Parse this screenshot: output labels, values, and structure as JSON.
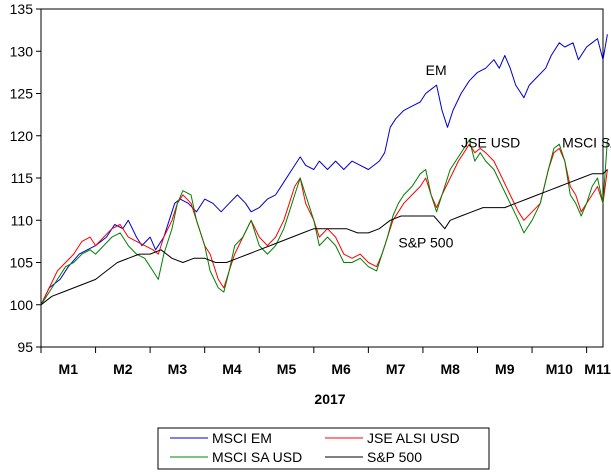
{
  "chart_data": {
    "type": "line",
    "title": "",
    "xlabel": "2017",
    "ylabel": "",
    "ylim": [
      95,
      135
    ],
    "yticks": [
      95,
      100,
      105,
      110,
      115,
      120,
      125,
      130,
      135
    ],
    "xlim": [
      0,
      10.3
    ],
    "xticks": [
      {
        "label": "M1",
        "x": 0.5
      },
      {
        "label": "M2",
        "x": 1.5
      },
      {
        "label": "M3",
        "x": 2.5
      },
      {
        "label": "M4",
        "x": 3.5
      },
      {
        "label": "M5",
        "x": 4.5
      },
      {
        "label": "M6",
        "x": 5.5
      },
      {
        "label": "M7",
        "x": 6.5
      },
      {
        "label": "M8",
        "x": 7.5
      },
      {
        "label": "M9",
        "x": 8.5
      },
      {
        "label": "M10",
        "x": 9.5
      },
      {
        "label": "M11",
        "x": 10.2
      }
    ],
    "grid": false,
    "legend": "bottom",
    "series": [
      {
        "name": "MSCI EM",
        "color": "#0000cc",
        "points": [
          [
            0,
            100
          ],
          [
            0.15,
            102
          ],
          [
            0.35,
            103
          ],
          [
            0.5,
            104.5
          ],
          [
            0.7,
            106
          ],
          [
            0.85,
            106.5
          ],
          [
            1.0,
            107
          ],
          [
            1.2,
            108
          ],
          [
            1.35,
            109.5
          ],
          [
            1.5,
            109
          ],
          [
            1.6,
            110
          ],
          [
            1.75,
            108
          ],
          [
            1.85,
            107
          ],
          [
            2.0,
            108
          ],
          [
            2.1,
            106.5
          ],
          [
            2.25,
            108
          ],
          [
            2.35,
            110
          ],
          [
            2.45,
            112
          ],
          [
            2.55,
            112.5
          ],
          [
            2.7,
            112
          ],
          [
            2.85,
            111
          ],
          [
            3.0,
            112.5
          ],
          [
            3.15,
            112
          ],
          [
            3.3,
            111
          ],
          [
            3.45,
            112
          ],
          [
            3.6,
            113
          ],
          [
            3.75,
            112
          ],
          [
            3.85,
            111
          ],
          [
            4.0,
            111.5
          ],
          [
            4.15,
            112.5
          ],
          [
            4.3,
            113
          ],
          [
            4.45,
            114.5
          ],
          [
            4.6,
            116
          ],
          [
            4.75,
            117.5
          ],
          [
            4.85,
            116.5
          ],
          [
            5.0,
            116
          ],
          [
            5.1,
            117
          ],
          [
            5.25,
            116
          ],
          [
            5.4,
            117
          ],
          [
            5.55,
            116
          ],
          [
            5.7,
            117
          ],
          [
            5.85,
            116.5
          ],
          [
            6.0,
            116
          ],
          [
            6.2,
            117
          ],
          [
            6.3,
            118
          ],
          [
            6.4,
            121
          ],
          [
            6.5,
            122
          ],
          [
            6.65,
            123
          ],
          [
            6.8,
            123.5
          ],
          [
            6.95,
            124
          ],
          [
            7.05,
            125
          ],
          [
            7.15,
            125.5
          ],
          [
            7.25,
            126
          ],
          [
            7.35,
            123
          ],
          [
            7.45,
            121
          ],
          [
            7.55,
            123
          ],
          [
            7.7,
            125
          ],
          [
            7.85,
            126.5
          ],
          [
            8.0,
            127.5
          ],
          [
            8.15,
            128
          ],
          [
            8.3,
            129
          ],
          [
            8.4,
            128
          ],
          [
            8.5,
            129.5
          ],
          [
            8.6,
            128
          ],
          [
            8.7,
            126
          ],
          [
            8.85,
            124.5
          ],
          [
            8.95,
            126
          ],
          [
            9.1,
            127
          ],
          [
            9.25,
            128
          ],
          [
            9.35,
            129.5
          ],
          [
            9.5,
            131
          ],
          [
            9.6,
            130.5
          ],
          [
            9.75,
            131
          ],
          [
            9.85,
            129
          ],
          [
            10.0,
            130.5
          ],
          [
            10.1,
            131
          ],
          [
            10.2,
            131.5
          ],
          [
            10.3,
            129
          ],
          [
            10.38,
            132
          ]
        ]
      },
      {
        "name": "JSE ALSI USD",
        "color": "#ff0000",
        "points": [
          [
            0,
            100
          ],
          [
            0.15,
            102
          ],
          [
            0.3,
            104
          ],
          [
            0.45,
            105
          ],
          [
            0.6,
            106
          ],
          [
            0.75,
            107.5
          ],
          [
            0.9,
            108
          ],
          [
            1.0,
            107
          ],
          [
            1.15,
            108
          ],
          [
            1.3,
            109
          ],
          [
            1.45,
            109.5
          ],
          [
            1.6,
            108
          ],
          [
            1.75,
            107.5
          ],
          [
            1.9,
            107
          ],
          [
            2.05,
            106.5
          ],
          [
            2.15,
            106
          ],
          [
            2.25,
            108
          ],
          [
            2.4,
            110
          ],
          [
            2.5,
            112
          ],
          [
            2.6,
            113
          ],
          [
            2.75,
            112
          ],
          [
            2.85,
            110
          ],
          [
            3.0,
            107
          ],
          [
            3.1,
            106
          ],
          [
            3.25,
            103
          ],
          [
            3.35,
            102
          ],
          [
            3.45,
            104
          ],
          [
            3.55,
            106
          ],
          [
            3.7,
            108
          ],
          [
            3.85,
            110
          ],
          [
            4.0,
            108
          ],
          [
            4.15,
            107
          ],
          [
            4.3,
            108
          ],
          [
            4.45,
            110
          ],
          [
            4.55,
            112
          ],
          [
            4.65,
            114
          ],
          [
            4.75,
            115
          ],
          [
            4.85,
            112
          ],
          [
            5.0,
            110
          ],
          [
            5.1,
            108
          ],
          [
            5.25,
            109
          ],
          [
            5.4,
            108
          ],
          [
            5.55,
            106
          ],
          [
            5.7,
            105.5
          ],
          [
            5.85,
            106
          ],
          [
            6.0,
            105
          ],
          [
            6.15,
            104.5
          ],
          [
            6.25,
            106
          ],
          [
            6.35,
            108
          ],
          [
            6.45,
            110
          ],
          [
            6.55,
            111
          ],
          [
            6.65,
            112
          ],
          [
            6.8,
            113
          ],
          [
            6.95,
            114
          ],
          [
            7.05,
            115
          ],
          [
            7.15,
            113
          ],
          [
            7.25,
            111.5
          ],
          [
            7.35,
            113
          ],
          [
            7.5,
            115
          ],
          [
            7.65,
            117
          ],
          [
            7.75,
            118
          ],
          [
            7.85,
            119
          ],
          [
            7.95,
            118
          ],
          [
            8.05,
            118.5
          ],
          [
            8.15,
            118
          ],
          [
            8.3,
            117
          ],
          [
            8.45,
            115
          ],
          [
            8.6,
            113
          ],
          [
            8.75,
            111
          ],
          [
            8.85,
            110
          ],
          [
            9.0,
            111
          ],
          [
            9.15,
            112
          ],
          [
            9.3,
            116
          ],
          [
            9.4,
            118
          ],
          [
            9.5,
            118.5
          ],
          [
            9.6,
            117
          ],
          [
            9.7,
            114
          ],
          [
            9.8,
            113
          ],
          [
            9.9,
            111
          ],
          [
            10.0,
            112
          ],
          [
            10.1,
            113
          ],
          [
            10.2,
            114
          ],
          [
            10.3,
            112
          ],
          [
            10.38,
            116
          ]
        ]
      },
      {
        "name": "MSCI SA USD",
        "color": "#008000",
        "points": [
          [
            0,
            100
          ],
          [
            0.15,
            101.5
          ],
          [
            0.3,
            103
          ],
          [
            0.45,
            104.5
          ],
          [
            0.6,
            105
          ],
          [
            0.75,
            106
          ],
          [
            0.9,
            106.5
          ],
          [
            1.0,
            106
          ],
          [
            1.15,
            107
          ],
          [
            1.3,
            108
          ],
          [
            1.45,
            108.5
          ],
          [
            1.6,
            107
          ],
          [
            1.75,
            106
          ],
          [
            1.9,
            105.5
          ],
          [
            2.05,
            104
          ],
          [
            2.15,
            103
          ],
          [
            2.25,
            106
          ],
          [
            2.4,
            109
          ],
          [
            2.5,
            112
          ],
          [
            2.6,
            113.5
          ],
          [
            2.75,
            113
          ],
          [
            2.85,
            110
          ],
          [
            3.0,
            107
          ],
          [
            3.1,
            104
          ],
          [
            3.25,
            102
          ],
          [
            3.35,
            101.5
          ],
          [
            3.45,
            104
          ],
          [
            3.55,
            107
          ],
          [
            3.7,
            108
          ],
          [
            3.85,
            110
          ],
          [
            4.0,
            107
          ],
          [
            4.15,
            106
          ],
          [
            4.3,
            107
          ],
          [
            4.45,
            109
          ],
          [
            4.55,
            111
          ],
          [
            4.65,
            113
          ],
          [
            4.75,
            115
          ],
          [
            4.85,
            113
          ],
          [
            5.0,
            110
          ],
          [
            5.1,
            107
          ],
          [
            5.25,
            108
          ],
          [
            5.4,
            107
          ],
          [
            5.55,
            105
          ],
          [
            5.7,
            105
          ],
          [
            5.85,
            105.5
          ],
          [
            6.0,
            104.5
          ],
          [
            6.15,
            104
          ],
          [
            6.25,
            106
          ],
          [
            6.35,
            108
          ],
          [
            6.45,
            110.5
          ],
          [
            6.55,
            112
          ],
          [
            6.65,
            113
          ],
          [
            6.8,
            114
          ],
          [
            6.95,
            115.5
          ],
          [
            7.05,
            116
          ],
          [
            7.15,
            113
          ],
          [
            7.25,
            111
          ],
          [
            7.35,
            113
          ],
          [
            7.5,
            116
          ],
          [
            7.65,
            117.5
          ],
          [
            7.75,
            118.5
          ],
          [
            7.85,
            119.5
          ],
          [
            7.95,
            117
          ],
          [
            8.05,
            118
          ],
          [
            8.15,
            117
          ],
          [
            8.3,
            116
          ],
          [
            8.45,
            114
          ],
          [
            8.6,
            112
          ],
          [
            8.75,
            110
          ],
          [
            8.85,
            108.5
          ],
          [
            9.0,
            110
          ],
          [
            9.15,
            112
          ],
          [
            9.3,
            116
          ],
          [
            9.4,
            118.5
          ],
          [
            9.5,
            119
          ],
          [
            9.6,
            117
          ],
          [
            9.7,
            113
          ],
          [
            9.8,
            112
          ],
          [
            9.9,
            110.5
          ],
          [
            10.0,
            112
          ],
          [
            10.1,
            114
          ],
          [
            10.2,
            115
          ],
          [
            10.3,
            112
          ],
          [
            10.38,
            119.5
          ]
        ]
      },
      {
        "name": "S&P 500",
        "color": "#000000",
        "points": [
          [
            0,
            100
          ],
          [
            0.2,
            101
          ],
          [
            0.4,
            101.5
          ],
          [
            0.6,
            102
          ],
          [
            0.8,
            102.5
          ],
          [
            1.0,
            103
          ],
          [
            1.2,
            104
          ],
          [
            1.4,
            105
          ],
          [
            1.6,
            105.5
          ],
          [
            1.8,
            106
          ],
          [
            2.0,
            106
          ],
          [
            2.2,
            106.5
          ],
          [
            2.4,
            105.5
          ],
          [
            2.6,
            105
          ],
          [
            2.8,
            105.5
          ],
          [
            3.0,
            105.5
          ],
          [
            3.2,
            105
          ],
          [
            3.4,
            105
          ],
          [
            3.6,
            105.5
          ],
          [
            3.8,
            106
          ],
          [
            4.0,
            106.5
          ],
          [
            4.2,
            107
          ],
          [
            4.4,
            107.5
          ],
          [
            4.6,
            108
          ],
          [
            4.8,
            108.5
          ],
          [
            5.0,
            109
          ],
          [
            5.2,
            109
          ],
          [
            5.4,
            109
          ],
          [
            5.6,
            109
          ],
          [
            5.8,
            108.5
          ],
          [
            6.0,
            108.5
          ],
          [
            6.2,
            109
          ],
          [
            6.4,
            110
          ],
          [
            6.6,
            110.5
          ],
          [
            6.8,
            110.5
          ],
          [
            7.0,
            110.5
          ],
          [
            7.2,
            110.5
          ],
          [
            7.4,
            109
          ],
          [
            7.5,
            110
          ],
          [
            7.7,
            110.5
          ],
          [
            7.9,
            111
          ],
          [
            8.1,
            111.5
          ],
          [
            8.3,
            111.5
          ],
          [
            8.5,
            111.5
          ],
          [
            8.7,
            112
          ],
          [
            8.9,
            112.5
          ],
          [
            9.1,
            113
          ],
          [
            9.3,
            113.5
          ],
          [
            9.5,
            114
          ],
          [
            9.7,
            114.5
          ],
          [
            9.9,
            115
          ],
          [
            10.1,
            115.5
          ],
          [
            10.3,
            115.5
          ],
          [
            10.38,
            116
          ]
        ]
      }
    ],
    "annotations": [
      {
        "text": "EM",
        "x": 7.05,
        "y": 127.2
      },
      {
        "text": "JSE USD",
        "x": 7.7,
        "y": 118.6
      },
      {
        "text": "MSCI SA",
        "x": 9.55,
        "y": 118.6
      },
      {
        "text": "S&P 500",
        "x": 6.55,
        "y": 106.8
      }
    ]
  }
}
